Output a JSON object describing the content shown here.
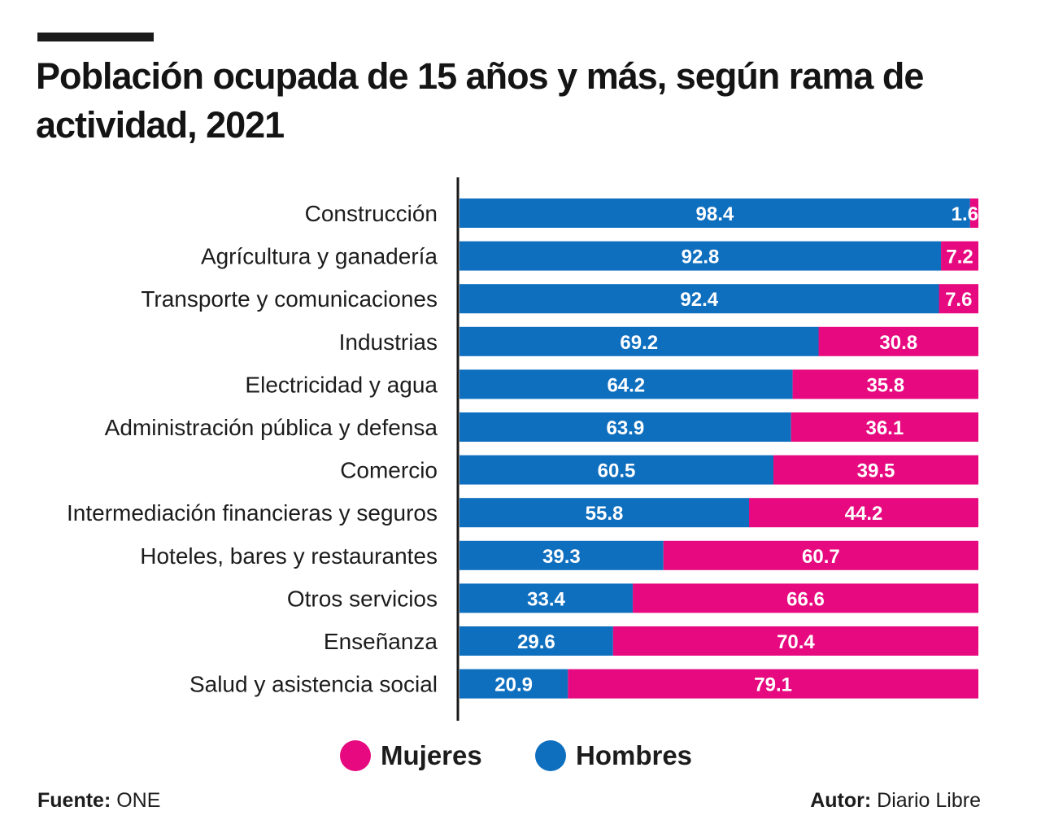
{
  "title": "Población ocupada de 15 años y más, según rama de actividad, 2021",
  "colors": {
    "hombres": "#0f6fbf",
    "mujeres": "#e6097f",
    "axis": "#1a1a1a"
  },
  "legend": {
    "mujeres": "Mujeres",
    "hombres": "Hombres"
  },
  "footer": {
    "source_label": "Fuente:",
    "source_value": "ONE",
    "author_label": "Autor:",
    "author_value": "Diario Libre"
  },
  "chart_data": {
    "type": "bar",
    "orientation": "horizontal",
    "stacked": true,
    "title": "Población ocupada de 15 años y más, según rama de actividad, 2021",
    "categories": [
      "Construcción",
      "Agrícultura y ganadería",
      "Transporte y comunicaciones",
      "Industrias",
      "Electricidad y agua",
      "Administración pública y defensa",
      "Comercio",
      "Intermediación financieras y seguros",
      "Hoteles, bares y restaurantes",
      "Otros servicios",
      "Enseñanza",
      "Salud y asistencia social"
    ],
    "series": [
      {
        "name": "Hombres",
        "values": [
          98.4,
          92.8,
          92.4,
          69.2,
          64.2,
          63.9,
          60.5,
          55.8,
          39.3,
          33.4,
          29.6,
          20.9
        ]
      },
      {
        "name": "Mujeres",
        "values": [
          1.6,
          7.2,
          7.6,
          30.8,
          35.8,
          36.1,
          39.5,
          44.2,
          60.7,
          66.6,
          70.4,
          79.1
        ]
      }
    ],
    "xlim": [
      0,
      100
    ],
    "xlabel": "",
    "ylabel": "",
    "legend_position": "bottom"
  }
}
